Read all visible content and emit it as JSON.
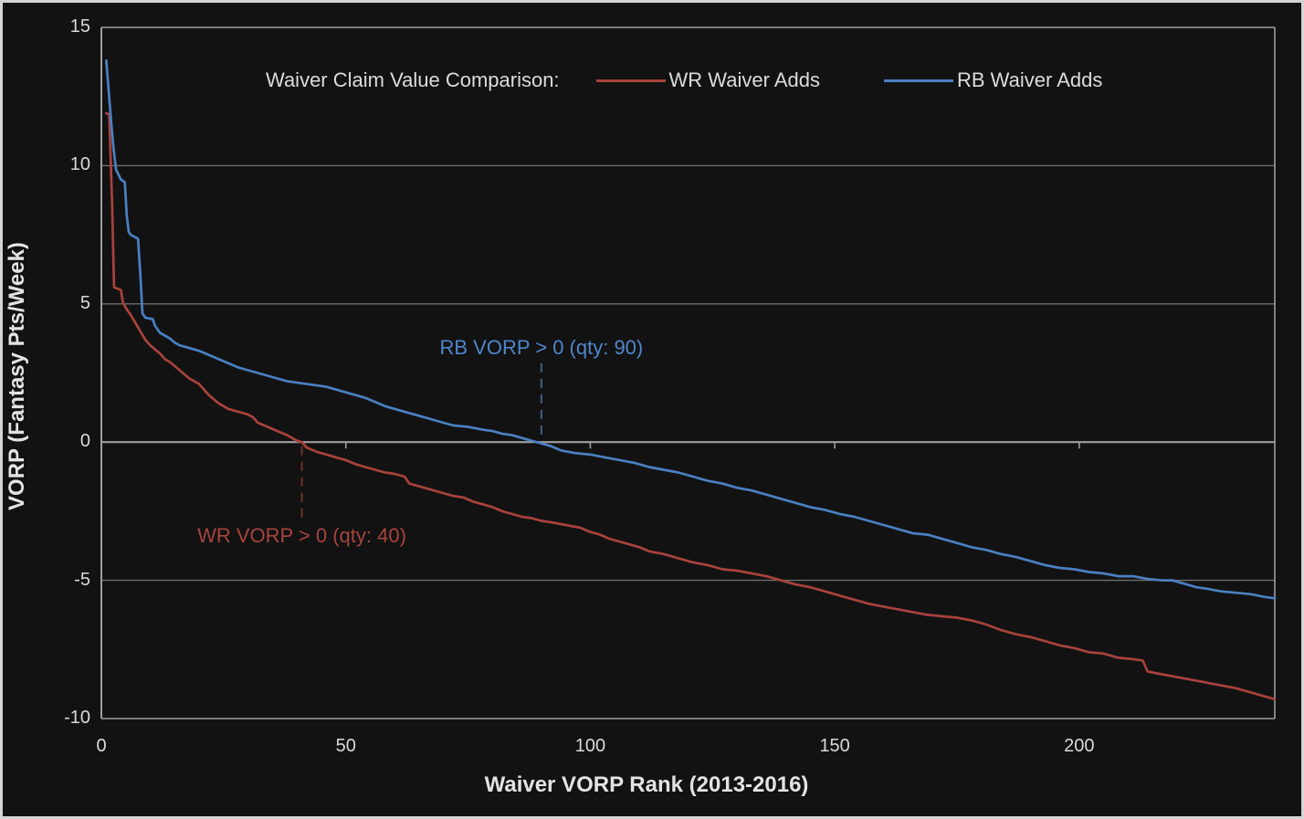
{
  "colors": {
    "background": "#121212",
    "frame_border": "#d4d4d4",
    "text": "#dcdcdc",
    "gridline": "#6e6e6e",
    "axis_line": "#9f9f9f",
    "wr_line": "#a8423c",
    "rb_line": "#4a80c2",
    "wr_annotation_text": "#a8433e",
    "rb_annotation_text": "#4e86cc",
    "wr_dash": "#63302c",
    "rb_dash": "#3e5a7a"
  },
  "chart_data": {
    "type": "line",
    "title": "Waiver Claim Value Comparison:",
    "xlabel": "Waiver VORP Rank (2013-2016)",
    "ylabel": "VORP (Fantasy Pts/Week)",
    "xlim": [
      0,
      240
    ],
    "ylim": [
      -10,
      15
    ],
    "x_ticks": [
      0,
      50,
      100,
      150,
      200
    ],
    "y_ticks": [
      15,
      10,
      5,
      0,
      -5,
      -10
    ],
    "grid": "horizontal gridlines every 5 units, full plot box border, x ticks drawn on the y=0 axis line",
    "legend_position": "top-center",
    "series": [
      {
        "name": "WR Waiver Adds",
        "color": "#a8423c",
        "points": [
          [
            1,
            11.9
          ],
          [
            1.6,
            11.85
          ],
          [
            2.2,
            8.6
          ],
          [
            2.6,
            5.6
          ],
          [
            4,
            5.5
          ],
          [
            4.4,
            5.05
          ],
          [
            5,
            4.85
          ],
          [
            6,
            4.6
          ],
          [
            7,
            4.3
          ],
          [
            8,
            4.0
          ],
          [
            9,
            3.7
          ],
          [
            10,
            3.5
          ],
          [
            11,
            3.35
          ],
          [
            12,
            3.2
          ],
          [
            13,
            3.0
          ],
          [
            14,
            2.9
          ],
          [
            15,
            2.75
          ],
          [
            16,
            2.6
          ],
          [
            17,
            2.45
          ],
          [
            18,
            2.3
          ],
          [
            19,
            2.2
          ],
          [
            20,
            2.1
          ],
          [
            21,
            1.9
          ],
          [
            22,
            1.7
          ],
          [
            23,
            1.55
          ],
          [
            24,
            1.4
          ],
          [
            25,
            1.3
          ],
          [
            26,
            1.2
          ],
          [
            27,
            1.15
          ],
          [
            28,
            1.1
          ],
          [
            29,
            1.05
          ],
          [
            30,
            1.0
          ],
          [
            31,
            0.9
          ],
          [
            32,
            0.7
          ],
          [
            34,
            0.55
          ],
          [
            36,
            0.4
          ],
          [
            38,
            0.25
          ],
          [
            40,
            0.05
          ],
          [
            41,
            0
          ],
          [
            42,
            -0.2
          ],
          [
            44,
            -0.35
          ],
          [
            46,
            -0.45
          ],
          [
            48,
            -0.55
          ],
          [
            50,
            -0.65
          ],
          [
            52,
            -0.8
          ],
          [
            54,
            -0.9
          ],
          [
            56,
            -1.0
          ],
          [
            58,
            -1.1
          ],
          [
            60,
            -1.15
          ],
          [
            62,
            -1.25
          ],
          [
            63,
            -1.5
          ],
          [
            65,
            -1.6
          ],
          [
            67,
            -1.7
          ],
          [
            70,
            -1.85
          ],
          [
            72,
            -1.95
          ],
          [
            74,
            -2.0
          ],
          [
            76,
            -2.15
          ],
          [
            78,
            -2.25
          ],
          [
            80,
            -2.35
          ],
          [
            82,
            -2.5
          ],
          [
            84,
            -2.6
          ],
          [
            86,
            -2.7
          ],
          [
            88,
            -2.75
          ],
          [
            90,
            -2.85
          ],
          [
            92,
            -2.9
          ],
          [
            95,
            -3.0
          ],
          [
            98,
            -3.1
          ],
          [
            100,
            -3.25
          ],
          [
            102,
            -3.35
          ],
          [
            104,
            -3.5
          ],
          [
            106,
            -3.6
          ],
          [
            108,
            -3.7
          ],
          [
            110,
            -3.8
          ],
          [
            112,
            -3.95
          ],
          [
            115,
            -4.05
          ],
          [
            118,
            -4.2
          ],
          [
            121,
            -4.35
          ],
          [
            124,
            -4.45
          ],
          [
            127,
            -4.6
          ],
          [
            130,
            -4.65
          ],
          [
            133,
            -4.75
          ],
          [
            136,
            -4.85
          ],
          [
            139,
            -5.0
          ],
          [
            142,
            -5.15
          ],
          [
            145,
            -5.25
          ],
          [
            148,
            -5.4
          ],
          [
            151,
            -5.55
          ],
          [
            154,
            -5.7
          ],
          [
            157,
            -5.85
          ],
          [
            160,
            -5.95
          ],
          [
            163,
            -6.05
          ],
          [
            166,
            -6.15
          ],
          [
            169,
            -6.25
          ],
          [
            172,
            -6.3
          ],
          [
            175,
            -6.35
          ],
          [
            178,
            -6.45
          ],
          [
            181,
            -6.6
          ],
          [
            184,
            -6.8
          ],
          [
            187,
            -6.95
          ],
          [
            190,
            -7.05
          ],
          [
            193,
            -7.2
          ],
          [
            196,
            -7.35
          ],
          [
            199,
            -7.45
          ],
          [
            202,
            -7.6
          ],
          [
            205,
            -7.65
          ],
          [
            208,
            -7.8
          ],
          [
            211,
            -7.85
          ],
          [
            213,
            -7.9
          ],
          [
            214,
            -8.3
          ],
          [
            217,
            -8.4
          ],
          [
            220,
            -8.5
          ],
          [
            223,
            -8.6
          ],
          [
            226,
            -8.7
          ],
          [
            229,
            -8.8
          ],
          [
            232,
            -8.9
          ],
          [
            235,
            -9.05
          ],
          [
            238,
            -9.2
          ],
          [
            240,
            -9.3
          ]
        ]
      },
      {
        "name": "RB Waiver Adds",
        "color": "#4a80c2",
        "points": [
          [
            1,
            13.8
          ],
          [
            2,
            11.6
          ],
          [
            2.5,
            10.6
          ],
          [
            3,
            9.85
          ],
          [
            4,
            9.5
          ],
          [
            4.8,
            9.4
          ],
          [
            5.2,
            8.2
          ],
          [
            5.6,
            7.6
          ],
          [
            6,
            7.5
          ],
          [
            7.5,
            7.35
          ],
          [
            8,
            6.0
          ],
          [
            8.4,
            4.65
          ],
          [
            9,
            4.5
          ],
          [
            10.5,
            4.45
          ],
          [
            11,
            4.2
          ],
          [
            12,
            3.95
          ],
          [
            13,
            3.85
          ],
          [
            14,
            3.75
          ],
          [
            15,
            3.6
          ],
          [
            16,
            3.5
          ],
          [
            18,
            3.4
          ],
          [
            20,
            3.3
          ],
          [
            22,
            3.15
          ],
          [
            24,
            3.0
          ],
          [
            26,
            2.85
          ],
          [
            28,
            2.7
          ],
          [
            30,
            2.6
          ],
          [
            32,
            2.5
          ],
          [
            34,
            2.4
          ],
          [
            36,
            2.3
          ],
          [
            38,
            2.2
          ],
          [
            40,
            2.15
          ],
          [
            42,
            2.1
          ],
          [
            44,
            2.05
          ],
          [
            46,
            2.0
          ],
          [
            48,
            1.9
          ],
          [
            50,
            1.8
          ],
          [
            52,
            1.7
          ],
          [
            54,
            1.6
          ],
          [
            56,
            1.45
          ],
          [
            58,
            1.3
          ],
          [
            60,
            1.2
          ],
          [
            62,
            1.1
          ],
          [
            64,
            1.0
          ],
          [
            66,
            0.9
          ],
          [
            68,
            0.8
          ],
          [
            70,
            0.7
          ],
          [
            72,
            0.6
          ],
          [
            75,
            0.55
          ],
          [
            78,
            0.45
          ],
          [
            80,
            0.4
          ],
          [
            82,
            0.3
          ],
          [
            84,
            0.25
          ],
          [
            86,
            0.15
          ],
          [
            88,
            0.05
          ],
          [
            90,
            -0.05
          ],
          [
            92,
            -0.15
          ],
          [
            94,
            -0.3
          ],
          [
            97,
            -0.4
          ],
          [
            100,
            -0.45
          ],
          [
            103,
            -0.55
          ],
          [
            106,
            -0.65
          ],
          [
            109,
            -0.75
          ],
          [
            112,
            -0.9
          ],
          [
            115,
            -1.0
          ],
          [
            118,
            -1.1
          ],
          [
            121,
            -1.25
          ],
          [
            124,
            -1.4
          ],
          [
            127,
            -1.5
          ],
          [
            130,
            -1.65
          ],
          [
            133,
            -1.75
          ],
          [
            136,
            -1.9
          ],
          [
            139,
            -2.05
          ],
          [
            142,
            -2.2
          ],
          [
            145,
            -2.35
          ],
          [
            148,
            -2.45
          ],
          [
            151,
            -2.6
          ],
          [
            154,
            -2.7
          ],
          [
            157,
            -2.85
          ],
          [
            160,
            -3.0
          ],
          [
            163,
            -3.15
          ],
          [
            166,
            -3.3
          ],
          [
            169,
            -3.35
          ],
          [
            172,
            -3.5
          ],
          [
            175,
            -3.65
          ],
          [
            178,
            -3.8
          ],
          [
            181,
            -3.9
          ],
          [
            184,
            -4.05
          ],
          [
            187,
            -4.15
          ],
          [
            190,
            -4.3
          ],
          [
            193,
            -4.45
          ],
          [
            196,
            -4.55
          ],
          [
            199,
            -4.6
          ],
          [
            202,
            -4.7
          ],
          [
            205,
            -4.75
          ],
          [
            208,
            -4.85
          ],
          [
            211,
            -4.85
          ],
          [
            214,
            -4.95
          ],
          [
            217,
            -5.0
          ],
          [
            219,
            -5.0
          ],
          [
            222,
            -5.15
          ],
          [
            224,
            -5.25
          ],
          [
            226,
            -5.3
          ],
          [
            229,
            -5.4
          ],
          [
            232,
            -5.45
          ],
          [
            235,
            -5.5
          ],
          [
            238,
            -5.6
          ],
          [
            240,
            -5.65
          ]
        ]
      }
    ],
    "annotations": [
      {
        "id": "wr-zero-cross",
        "text": "WR VORP > 0 (qty: 40)",
        "x": 41,
        "label_y": -3.4,
        "label_side": "below",
        "dash_from": -0.15,
        "dash_to": -2.75,
        "text_color": "#a8433e",
        "dash_color": "#63302c"
      },
      {
        "id": "rb-zero-cross",
        "text": "RB VORP > 0 (qty: 90)",
        "x": 90,
        "label_y": 3.4,
        "label_side": "above",
        "dash_from": 2.85,
        "dash_to": 0.05,
        "text_color": "#4e86cc",
        "dash_color": "#3e5a7a"
      }
    ]
  }
}
